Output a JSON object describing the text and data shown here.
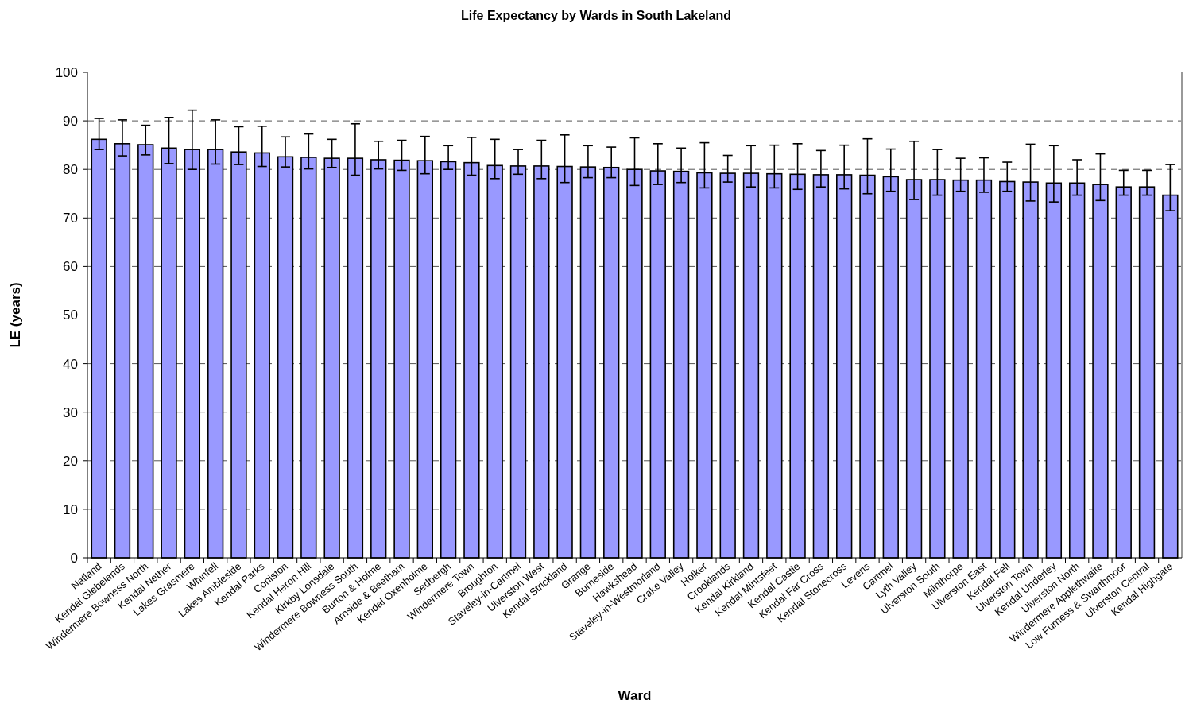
{
  "chart_data": {
    "type": "bar",
    "title": "Life Expectancy by Wards in South Lakeland",
    "xlabel": "Ward",
    "ylabel": "LE (years)",
    "categories": [
      "Natland",
      "Kendal Glebelands",
      "Windermere Bowness North",
      "Kendal Nether",
      "Lakes Grasmere",
      "Whinfell",
      "Lakes Ambleside",
      "Kendal Parks",
      "Coniston",
      "Kendal Heron Hill",
      "Kirkby Lonsdale",
      "Windermere Bowness South",
      "Burton & Holme",
      "Arnside & Beetham",
      "Kendal Oxenholme",
      "Sedbergh",
      "Windermere Town",
      "Broughton",
      "Staveley-in-Cartmel",
      "Ulverston West",
      "Kendal Strickland",
      "Grange",
      "Burneside",
      "Hawkshead",
      "Staveley-in-Westmorland",
      "Crake Valley",
      "Holker",
      "Crooklands",
      "Kendal Kirkland",
      "Kendal Mintsfeet",
      "Kendal Castle",
      "Kendal Far Cross",
      "Kendal Stonecross",
      "Levens",
      "Cartmel",
      "Lyth Valley",
      "Ulverston South",
      "Milnthorpe",
      "Ulverston East",
      "Kendal Fell",
      "Ulverston Town",
      "Kendal Underley",
      "Ulverston North",
      "Windermere Applethwaite",
      "Low Furness & Swarthmoor",
      "Ulverston Central",
      "Kendal Highgate"
    ],
    "values": [
      86.2,
      85.3,
      85.1,
      84.4,
      84.1,
      84.1,
      83.6,
      83.4,
      82.6,
      82.5,
      82.3,
      82.3,
      82.0,
      81.9,
      81.8,
      81.6,
      81.4,
      80.8,
      80.7,
      80.7,
      80.6,
      80.5,
      80.4,
      80.0,
      79.7,
      79.6,
      79.3,
      79.2,
      79.2,
      79.1,
      79.0,
      78.9,
      78.9,
      78.8,
      78.5,
      77.9,
      77.9,
      77.8,
      77.8,
      77.5,
      77.4,
      77.2,
      77.2,
      76.9,
      76.4,
      76.4,
      74.7
    ],
    "errors": [
      [
        84.1,
        90.5
      ],
      [
        82.8,
        90.2
      ],
      [
        83.0,
        89.1
      ],
      [
        81.2,
        90.7
      ],
      [
        80.0,
        92.2
      ],
      [
        81.1,
        90.2
      ],
      [
        81.0,
        88.8
      ],
      [
        80.6,
        88.9
      ],
      [
        80.5,
        86.7
      ],
      [
        80.1,
        87.3
      ],
      [
        80.4,
        86.2
      ],
      [
        78.8,
        89.4
      ],
      [
        80.1,
        85.8
      ],
      [
        79.8,
        86.0
      ],
      [
        79.1,
        86.8
      ],
      [
        80.0,
        84.9
      ],
      [
        78.8,
        86.6
      ],
      [
        78.1,
        86.2
      ],
      [
        79.0,
        84.1
      ],
      [
        78.1,
        86.0
      ],
      [
        77.3,
        87.1
      ],
      [
        78.3,
        84.9
      ],
      [
        78.3,
        84.6
      ],
      [
        76.7,
        86.5
      ],
      [
        76.9,
        85.3
      ],
      [
        77.3,
        84.4
      ],
      [
        76.2,
        85.5
      ],
      [
        77.4,
        82.9
      ],
      [
        76.4,
        84.9
      ],
      [
        76.2,
        85.0
      ],
      [
        75.9,
        85.3
      ],
      [
        76.4,
        83.9
      ],
      [
        76.0,
        85.0
      ],
      [
        75.0,
        86.3
      ],
      [
        75.5,
        84.2
      ],
      [
        73.8,
        85.8
      ],
      [
        74.7,
        84.1
      ],
      [
        75.5,
        82.3
      ],
      [
        75.3,
        82.4
      ],
      [
        75.5,
        81.5
      ],
      [
        73.5,
        85.2
      ],
      [
        73.3,
        84.9
      ],
      [
        74.7,
        82.0
      ],
      [
        73.6,
        83.2
      ],
      [
        74.7,
        79.8
      ],
      [
        74.7,
        79.8
      ],
      [
        71.5,
        81.0
      ]
    ],
    "color": "#9999ff",
    "ylim": [
      0,
      100
    ],
    "yticks": [
      0,
      10,
      20,
      30,
      40,
      50,
      60,
      70,
      80,
      90,
      100
    ],
    "grid": "y"
  }
}
